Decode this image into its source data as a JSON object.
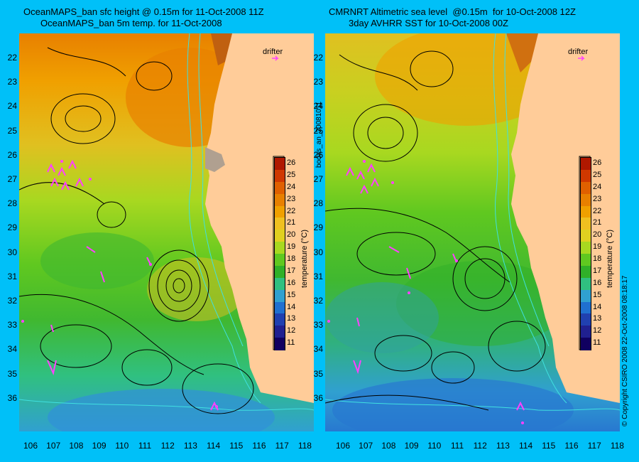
{
  "left_panel": {
    "title_line1": "OceanMAPS_ban sfc height @ 0.15m for 11-Oct-2008 11Z",
    "title_line2": "OceanMAPS_ban 5m temp. for 11-Oct-2008",
    "drifter_label": "drifter"
  },
  "right_panel": {
    "title_line1": "CMRNRT Altimetric sea level  @0.15m  for 10-Oct-2008 12Z",
    "title_line2": "3day AVHRR SST for 10-Oct-2008 00Z",
    "drifter_label": "drifter"
  },
  "side_text_middle": "bodas_an_20081011",
  "side_text_right": "© Copyright CSIRO 2008   22-Oct-2008 08:18:17",
  "colorbar": {
    "title": "temperature (°C)",
    "ticks": [
      "26",
      "25",
      "24",
      "23",
      "22",
      "21",
      "20",
      "19",
      "18",
      "17",
      "16",
      "15",
      "14",
      "13",
      "12",
      "11"
    ],
    "colors": [
      "#b01800",
      "#d03800",
      "#e06000",
      "#e88000",
      "#f0a000",
      "#f0c020",
      "#e0d020",
      "#a8d820",
      "#60c820",
      "#30b028",
      "#30c080",
      "#30a0d0",
      "#2070d0",
      "#2040b0",
      "#202090",
      "#100060"
    ]
  },
  "axes": {
    "lat_ticks": [
      "22",
      "23",
      "24",
      "25",
      "26",
      "27",
      "28",
      "29",
      "30",
      "31",
      "32",
      "33",
      "34",
      "35",
      "36"
    ],
    "lon_ticks": [
      "106",
      "107",
      "108",
      "109",
      "110",
      "111",
      "112",
      "113",
      "114",
      "115",
      "116",
      "117",
      "118"
    ]
  },
  "colors": {
    "background": "#00c0f8",
    "land": "#ffcc99",
    "contour": "#000000",
    "bathymetry": "#40e0e0",
    "drifter": "#ff40ff"
  }
}
